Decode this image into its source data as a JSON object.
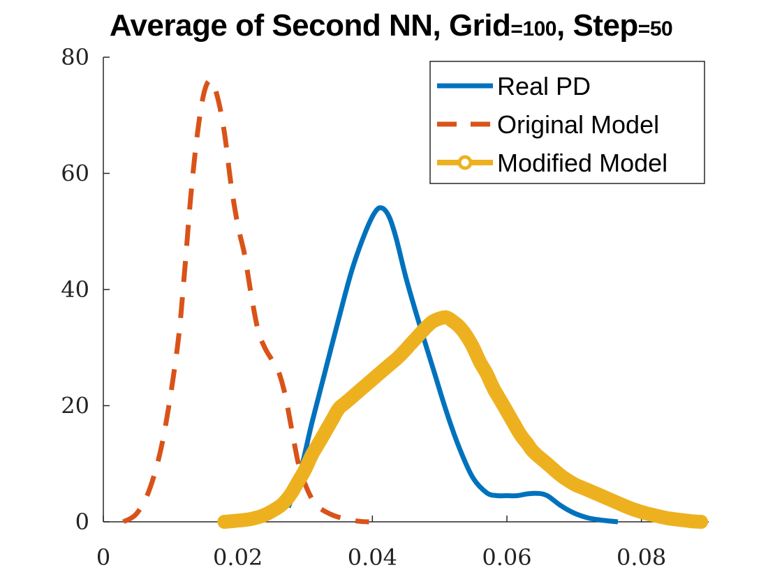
{
  "chart_data": {
    "type": "line",
    "title_parts": {
      "prefix": "Average of Second NN, Grid",
      "grid_eq": "=100",
      "middle": ", Step",
      "step_eq": "=50"
    },
    "xlim": [
      0,
      0.09
    ],
    "ylim": [
      0,
      80
    ],
    "x_ticks": [
      0,
      0.02,
      0.04,
      0.06,
      0.08
    ],
    "x_tick_labels": [
      "0",
      "0.02",
      "0.04",
      "0.06",
      "0.08"
    ],
    "y_ticks": [
      0,
      20,
      40,
      60,
      80
    ],
    "y_tick_labels": [
      "0",
      "20",
      "40",
      "60",
      "80"
    ],
    "legend_position": "top-right",
    "grid": false,
    "series": [
      {
        "name": "Real PD",
        "color": "#0072BD",
        "style": "solid",
        "x": [
          0.0275,
          0.0285,
          0.0295,
          0.031,
          0.033,
          0.035,
          0.037,
          0.039,
          0.0405,
          0.0415,
          0.0425,
          0.0435,
          0.045,
          0.047,
          0.049,
          0.051,
          0.053,
          0.055,
          0.057,
          0.0585,
          0.06,
          0.0615,
          0.063,
          0.0645,
          0.066,
          0.068,
          0.07,
          0.072,
          0.074,
          0.0765
        ],
        "y": [
          2.5,
          5.5,
          9.5,
          17,
          26,
          35,
          43.5,
          50,
          53.5,
          54,
          52.5,
          49,
          42,
          34,
          26.5,
          19,
          12.5,
          7.5,
          5,
          4.5,
          4.5,
          4.5,
          4.8,
          4.9,
          4.5,
          2.8,
          1.5,
          0.7,
          0.3,
          0.0
        ]
      },
      {
        "name": "Original Model",
        "color": "#D95319",
        "style": "dashed",
        "x": [
          0.003,
          0.005,
          0.007,
          0.009,
          0.011,
          0.012,
          0.013,
          0.014,
          0.015,
          0.016,
          0.017,
          0.018,
          0.019,
          0.02,
          0.021,
          0.022,
          0.023,
          0.024,
          0.025,
          0.026,
          0.027,
          0.028,
          0.029,
          0.03,
          0.031,
          0.032,
          0.034,
          0.036,
          0.038,
          0.0395
        ],
        "y": [
          0.0,
          1.5,
          6,
          15,
          30,
          42,
          56,
          67,
          74,
          76,
          73,
          67,
          58,
          51,
          46,
          39,
          33,
          30,
          28,
          26,
          22,
          16,
          10,
          6.5,
          4,
          2.5,
          1.2,
          0.5,
          0.1,
          0.0
        ]
      },
      {
        "name": "Modified Model",
        "color": "#EDB120",
        "style": "marker-line",
        "x": [
          0.018,
          0.02,
          0.022,
          0.024,
          0.026,
          0.027,
          0.028,
          0.029,
          0.03,
          0.031,
          0.032,
          0.033,
          0.034,
          0.035,
          0.036,
          0.038,
          0.04,
          0.042,
          0.044,
          0.046,
          0.048,
          0.049,
          0.05,
          0.051,
          0.052,
          0.053,
          0.054,
          0.055,
          0.056,
          0.057,
          0.058,
          0.059,
          0.06,
          0.061,
          0.062,
          0.063,
          0.064,
          0.066,
          0.068,
          0.07,
          0.072,
          0.074,
          0.076,
          0.078,
          0.08,
          0.082,
          0.084,
          0.086,
          0.088,
          0.089
        ],
        "y": [
          0.0,
          0.2,
          0.5,
          1.2,
          2.5,
          3.5,
          5,
          7,
          9,
          11.5,
          13.5,
          15.5,
          17.5,
          19.5,
          20.5,
          22.5,
          24.5,
          26.5,
          28.5,
          31,
          33.5,
          34.5,
          35,
          35.2,
          34.5,
          33.5,
          32,
          30,
          27.5,
          25.5,
          23,
          21,
          19,
          17,
          15,
          13.5,
          12,
          10,
          8,
          6.5,
          5.5,
          4.5,
          3.5,
          2.5,
          1.7,
          1.1,
          0.6,
          0.3,
          0.05,
          0.0
        ]
      }
    ]
  }
}
